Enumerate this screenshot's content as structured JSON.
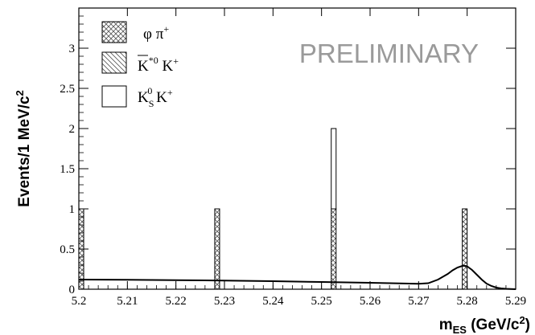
{
  "chart_data": {
    "type": "bar",
    "x_range": [
      5.2,
      5.29
    ],
    "y_range": [
      0,
      3.5
    ],
    "bin_width": 0.001,
    "xlabel": {
      "main": "m",
      "sub": "ES",
      "units": " (GeV/c",
      "sup": "2",
      "close": ")"
    },
    "ylabel": "Events/1 MeV/c",
    "ylabel_sup": "2",
    "x_ticks": [
      {
        "value": 5.2,
        "label": "5.2"
      },
      {
        "value": 5.21,
        "label": "5.21"
      },
      {
        "value": 5.22,
        "label": "5.22"
      },
      {
        "value": 5.23,
        "label": "5.23"
      },
      {
        "value": 5.24,
        "label": "5.24"
      },
      {
        "value": 5.25,
        "label": "5.25"
      },
      {
        "value": 5.26,
        "label": "5.26"
      },
      {
        "value": 5.27,
        "label": "5.27"
      },
      {
        "value": 5.28,
        "label": "5.28"
      },
      {
        "value": 5.29,
        "label": "5.29"
      }
    ],
    "y_ticks": [
      {
        "value": 0,
        "label": "0"
      },
      {
        "value": 0.5,
        "label": "0.5"
      },
      {
        "value": 1,
        "label": "1"
      },
      {
        "value": 1.5,
        "label": "1.5"
      },
      {
        "value": 2,
        "label": "2"
      },
      {
        "value": 2.5,
        "label": "2.5"
      },
      {
        "value": 3,
        "label": "3"
      }
    ],
    "series": [
      {
        "id": "phipi",
        "pattern": "crosshatch",
        "bins": [
          {
            "x0": 5.2,
            "x1": 5.201,
            "count": 1
          },
          {
            "x0": 5.228,
            "x1": 5.229,
            "count": 1
          },
          {
            "x0": 5.252,
            "x1": 5.253,
            "count": 1
          },
          {
            "x0": 5.279,
            "x1": 5.28,
            "count": 1
          }
        ]
      },
      {
        "id": "kstark",
        "pattern": "diagonal",
        "bins": []
      },
      {
        "id": "ksk",
        "pattern": "open",
        "bins": [
          {
            "x0": 5.252,
            "x1": 5.253,
            "count": 1
          }
        ]
      }
    ],
    "fit_curve": {
      "x": [
        5.2,
        5.21,
        5.22,
        5.23,
        5.24,
        5.25,
        5.26,
        5.27,
        5.272,
        5.274,
        5.276,
        5.277,
        5.278,
        5.279,
        5.2795,
        5.28,
        5.281,
        5.282,
        5.283,
        5.284,
        5.285,
        5.286,
        5.287,
        5.288,
        5.289,
        5.29
      ],
      "y": [
        0.12,
        0.117,
        0.113,
        0.108,
        0.1,
        0.09,
        0.08,
        0.068,
        0.075,
        0.12,
        0.19,
        0.235,
        0.27,
        0.29,
        0.292,
        0.285,
        0.24,
        0.18,
        0.12,
        0.07,
        0.04,
        0.02,
        0.01,
        0.005,
        0.002,
        0.0
      ]
    },
    "legend": {
      "placement": "top-left",
      "entries": [
        {
          "series": "phipi",
          "pattern": "crosshatch",
          "label": "φ π",
          "sup": "+"
        },
        {
          "series": "kstark",
          "pattern": "diagonal",
          "label_overline": "K",
          "sup1": "*0",
          "label_rest": " K",
          "sup2": "+"
        },
        {
          "series": "ksk",
          "pattern": "open",
          "label": "K",
          "sub": "S",
          "sup": "0",
          "label_rest": " K",
          "sup2": "+"
        }
      ]
    },
    "annotation": "PRELIMINARY"
  }
}
